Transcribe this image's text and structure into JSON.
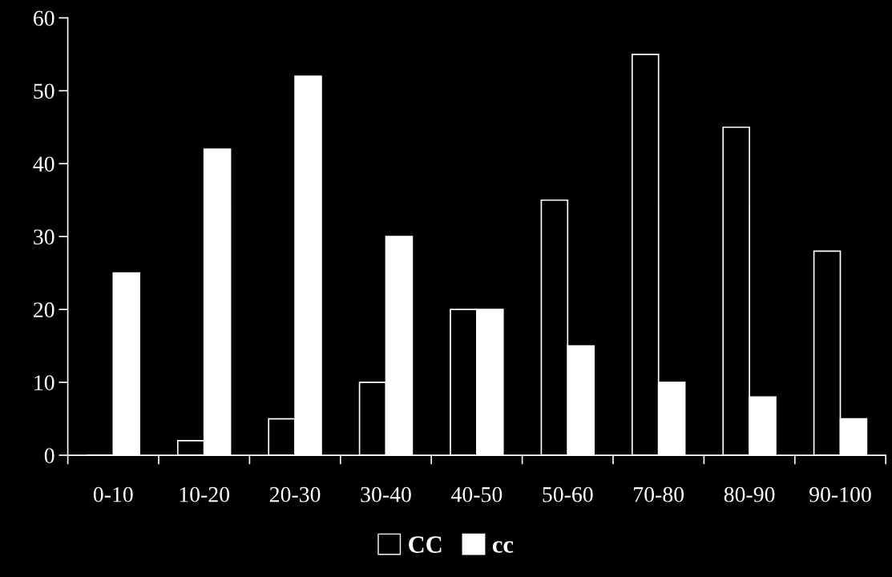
{
  "chart_data": {
    "type": "bar",
    "categories": [
      "0-10",
      "10-20",
      "20-30",
      "30-40",
      "40-50",
      "50-60",
      "70-80",
      "80-90",
      "90-100"
    ],
    "series": [
      {
        "name": "CC",
        "color": "#000000",
        "values": [
          0,
          2,
          5,
          10,
          20,
          35,
          55,
          45,
          28
        ]
      },
      {
        "name": "cc",
        "color": "#ffffff",
        "values": [
          25,
          42,
          52,
          30,
          20,
          15,
          10,
          8,
          5
        ]
      }
    ],
    "ylim": [
      0,
      60
    ],
    "yticks": [
      0,
      10,
      20,
      30,
      40,
      50,
      60
    ],
    "grid": false,
    "legend": "bottom"
  }
}
